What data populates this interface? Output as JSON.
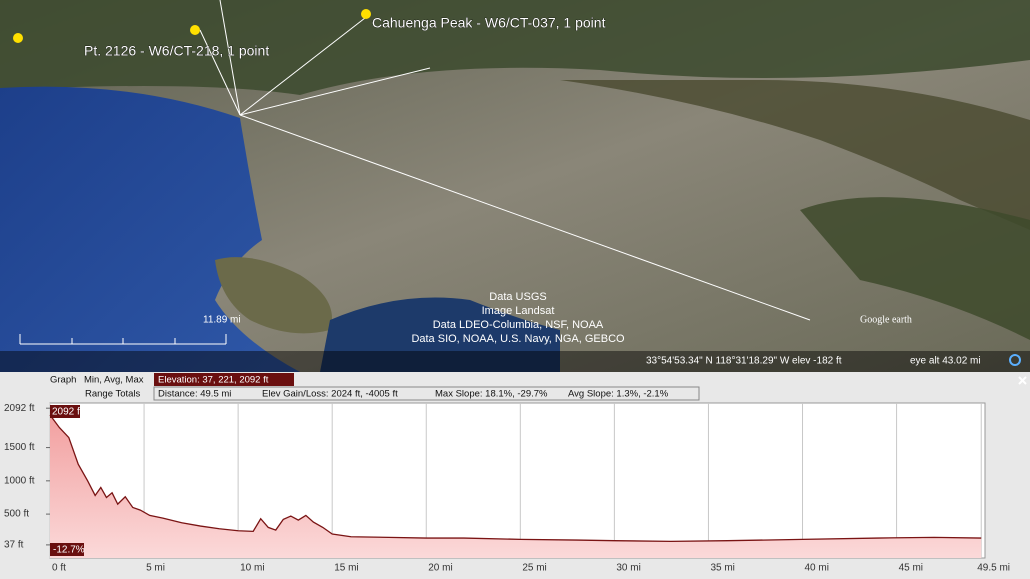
{
  "map": {
    "placemarks": [
      "Cahuenga Peak - W6/CT-037, 1 point",
      "Pt. 2126 - W6/CT-218, 1 point"
    ],
    "scale": "11.89 mi",
    "attribution": [
      "Data USGS",
      "Image Landsat",
      "Data LDEO-Columbia, NSF, NOAA",
      "Data SIO, NOAA, U.S. Navy, NGA, GEBCO"
    ],
    "logo": "Google earth",
    "coords": "33°54'53.34\" N  118°31'18.29\" W  elev  -182 ft",
    "eye_alt": "eye alt  43.02 mi"
  },
  "panel": {
    "graph_label": "Graph",
    "stats_label": "Min, Avg, Max",
    "elevation": "Elevation: 37, 221, 2092 ft",
    "range_label": "Range Totals",
    "distance": "Distance: 49.5 mi",
    "gain_loss": "Elev Gain/Loss: 2024 ft, -4005 ft",
    "max_slope": "Max Slope: 18.1%, -29.7%",
    "avg_slope": "Avg Slope: 1.3%, -2.1%"
  },
  "chart_data": {
    "type": "area",
    "x": [
      0,
      0.5,
      1,
      1.5,
      2,
      2.4,
      2.7,
      3,
      3.3,
      3.6,
      4,
      4.4,
      4.8,
      5.3,
      6,
      7,
      8,
      9,
      10,
      10.8,
      11.2,
      11.6,
      12,
      12.4,
      12.8,
      13.2,
      13.6,
      14,
      14.5,
      15,
      16,
      18,
      20,
      22,
      25,
      28,
      30,
      33,
      36,
      40,
      44,
      47,
      49.5
    ],
    "values": [
      1990,
      1800,
      1650,
      1250,
      1000,
      780,
      900,
      750,
      820,
      650,
      760,
      600,
      560,
      480,
      440,
      370,
      320,
      280,
      250,
      240,
      430,
      300,
      260,
      420,
      470,
      410,
      480,
      380,
      300,
      200,
      160,
      150,
      140,
      140,
      120,
      110,
      100,
      90,
      100,
      120,
      140,
      150,
      140
    ],
    "color": "#7a1414",
    "xlim": [
      0,
      49.7
    ],
    "ylim": [
      -160,
      2170
    ],
    "xticks": [
      {
        "value": 0,
        "label": "0 ft"
      },
      {
        "value": 5,
        "label": "5 mi"
      },
      {
        "value": 10,
        "label": "10 mi"
      },
      {
        "value": 15,
        "label": "15 mi"
      },
      {
        "value": 20,
        "label": "20 mi"
      },
      {
        "value": 25,
        "label": "25 mi"
      },
      {
        "value": 30,
        "label": "30 mi"
      },
      {
        "value": 35,
        "label": "35 mi"
      },
      {
        "value": 40,
        "label": "40 mi"
      },
      {
        "value": 45,
        "label": "45 mi"
      },
      {
        "value": 49.5,
        "label": "49.5 mi"
      }
    ],
    "yticks": [
      {
        "value": 2092,
        "label": "2092 ft"
      },
      {
        "value": 1500,
        "label": "1500 ft"
      },
      {
        "value": 1000,
        "label": "1000 ft"
      },
      {
        "value": 500,
        "label": "500 ft"
      },
      {
        "value": 37,
        "label": "37 ft"
      }
    ],
    "max_label": "2092 ft",
    "slope_label": "-12.7%",
    "grid": true
  }
}
